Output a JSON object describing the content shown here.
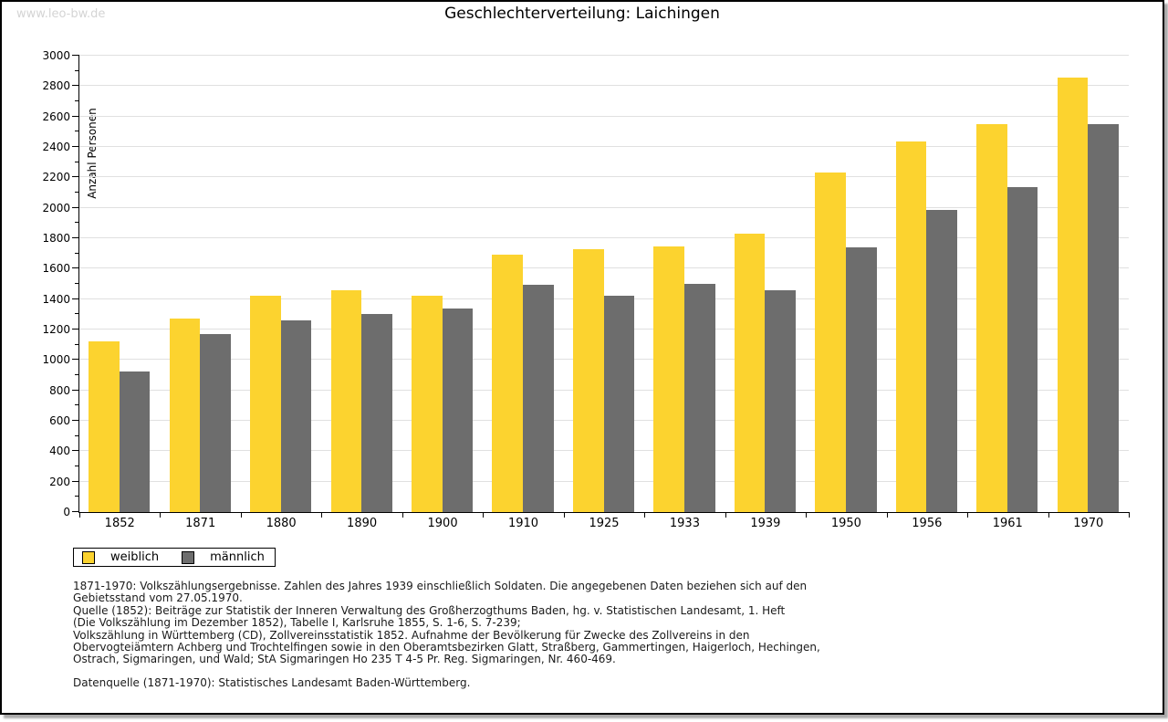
{
  "watermark": "www.leo-bw.de",
  "title": "Geschlechterverteilung: Laichingen",
  "chart_data": {
    "type": "bar",
    "title": "Geschlechterverteilung: Laichingen",
    "xlabel": "",
    "ylabel": "Anzahl Personen",
    "ylim": [
      0,
      3000
    ],
    "ytick_step": 200,
    "minor_tick_step": 100,
    "grid": true,
    "legend_position": "bottom-left",
    "categories": [
      "1852",
      "1871",
      "1880",
      "1890",
      "1900",
      "1910",
      "1925",
      "1933",
      "1939",
      "1950",
      "1956",
      "1961",
      "1970"
    ],
    "series": [
      {
        "name": "weiblich",
        "color": "#fcd32f",
        "values": [
          1120,
          1275,
          1425,
          1460,
          1425,
          1695,
          1730,
          1745,
          1830,
          2230,
          2435,
          2550,
          2855
        ]
      },
      {
        "name": "männlich",
        "color": "#6d6d6d",
        "values": [
          925,
          1170,
          1260,
          1300,
          1340,
          1495,
          1425,
          1500,
          1460,
          1740,
          1985,
          2135,
          2550
        ]
      }
    ]
  },
  "notes_lines": [
    "1871-1970: Volkszählungsergebnisse. Zahlen des Jahres 1939 einschließlich Soldaten. Die angegebenen Daten beziehen sich auf den",
    "Gebietsstand vom 27.05.1970.",
    "Quelle (1852): Beiträge zur Statistik der Inneren Verwaltung des Großherzogthums Baden, hg. v. Statistischen Landesamt, 1. Heft",
    "(Die Volkszählung im Dezember 1852), Tabelle I, Karlsruhe 1855, S. 1-6, S. 7-239;",
    "Volkszählung in Württemberg (CD), Zollvereinsstatistik 1852. Aufnahme der Bevölkerung für Zwecke des Zollvereins in den",
    "Obervogteiämtern Achberg und Trochtelfingen sowie in den Oberamtsbezirken Glatt, Straßberg, Gammertingen, Haigerloch, Hechingen,",
    "Ostrach, Sigmaringen, und Wald; StA Sigmaringen Ho 235 T 4-5 Pr. Reg. Sigmaringen, Nr. 460-469."
  ],
  "datasource_line": "Datenquelle (1871-1970): Statistisches Landesamt Baden-Württemberg.",
  "colors": {
    "bar_weiblich": "#fcd32f",
    "bar_maennlich": "#6d6d6d",
    "gridline": "#e0e0e0",
    "axis": "#000000",
    "watermark": "#d4d4d4",
    "frame_border": "#000000",
    "shadow": "#a9a9a9"
  }
}
